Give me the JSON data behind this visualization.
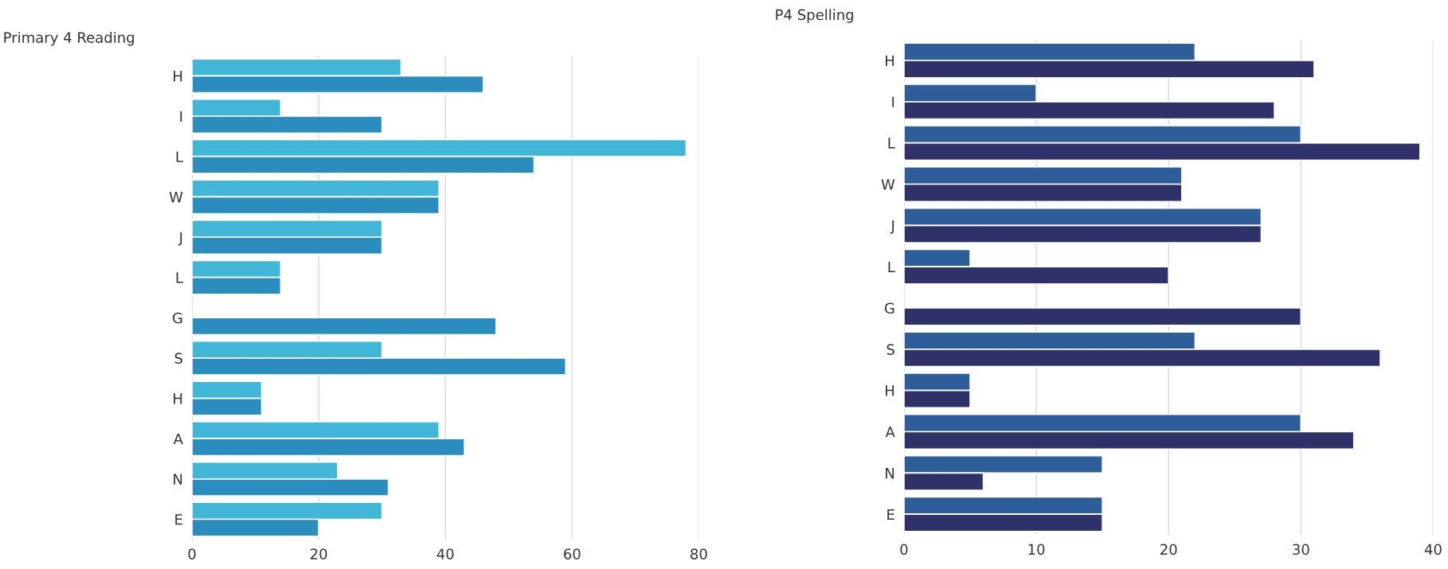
{
  "chart_data": [
    {
      "type": "bar",
      "orientation": "horizontal",
      "title": "Primary 4 Reading",
      "categories": [
        "H",
        "I",
        "L",
        "W",
        "J",
        "L",
        "G",
        "S",
        "H",
        "A",
        "N",
        "E"
      ],
      "series": [
        {
          "color": "#41b6d6",
          "values": [
            33,
            14,
            78,
            39,
            30,
            14,
            null,
            30,
            11,
            39,
            23,
            30
          ]
        },
        {
          "color": "#2b8cbe",
          "values": [
            46,
            30,
            54,
            39,
            30,
            14,
            48,
            59,
            11,
            43,
            31,
            20
          ]
        }
      ],
      "xlim": [
        0,
        80
      ],
      "xticks": [
        0,
        20,
        40,
        60,
        80
      ],
      "grid": "x",
      "legend": false
    },
    {
      "type": "bar",
      "orientation": "horizontal",
      "title": "P4 Spelling",
      "categories": [
        "H",
        "I",
        "L",
        "W",
        "J",
        "L",
        "G",
        "S",
        "H",
        "A",
        "N",
        "E"
      ],
      "series": [
        {
          "color": "#2e5e99",
          "values": [
            22,
            10,
            30,
            21,
            27,
            5,
            null,
            22,
            5,
            30,
            15,
            15
          ]
        },
        {
          "color": "#2e3268",
          "values": [
            31,
            28,
            39,
            21,
            27,
            20,
            30,
            36,
            5,
            34,
            6,
            15
          ]
        }
      ],
      "xlim": [
        0,
        40
      ],
      "xticks": [
        0,
        10,
        20,
        30,
        40
      ],
      "grid": "x",
      "legend": false
    }
  ]
}
